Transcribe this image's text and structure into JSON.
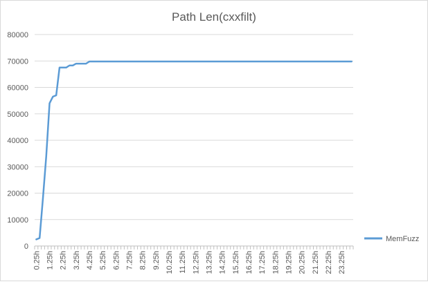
{
  "chart_data": {
    "type": "line",
    "title": "Path Len(cxxfilt)",
    "xlabel": "",
    "ylabel": "",
    "ylim": [
      0,
      80000
    ],
    "yticks": [
      0,
      10000,
      20000,
      30000,
      40000,
      50000,
      60000,
      70000,
      80000
    ],
    "x": [
      0.25,
      0.5,
      0.75,
      1.0,
      1.25,
      1.5,
      1.75,
      2.0,
      2.25,
      2.5,
      2.75,
      3.0,
      3.25,
      3.5,
      3.75,
      4.0,
      4.25,
      4.5,
      4.75,
      5.0,
      5.25,
      5.5,
      5.75,
      6.0,
      6.25,
      6.5,
      6.75,
      7.0,
      7.25,
      7.5,
      7.75,
      8.0,
      8.25,
      8.5,
      8.75,
      9.0,
      9.25,
      9.5,
      9.75,
      10.0,
      10.25,
      10.5,
      10.75,
      11.0,
      11.25,
      11.5,
      11.75,
      12.0,
      12.25,
      12.5,
      12.75,
      13.0,
      13.25,
      13.5,
      13.75,
      14.0,
      14.25,
      14.5,
      14.75,
      15.0,
      15.25,
      15.5,
      15.75,
      16.0,
      16.25,
      16.5,
      16.75,
      17.0,
      17.25,
      17.5,
      17.75,
      18.0,
      18.25,
      18.5,
      18.75,
      19.0,
      19.25,
      19.5,
      19.75,
      20.0,
      20.25,
      20.5,
      20.75,
      21.0,
      21.25,
      21.5,
      21.75,
      22.0,
      22.25,
      22.5,
      22.75,
      23.0,
      23.25,
      23.5,
      23.75,
      24.0
    ],
    "xtick_labels": [
      "0.25h",
      "1.25h",
      "2.25h",
      "3.25h",
      "4.25h",
      "5.25h",
      "6.25h",
      "7.25h",
      "8.25h",
      "9.25h",
      "10.25h",
      "11.25h",
      "12.25h",
      "13.25h",
      "14.25h",
      "15.25h",
      "16.25h",
      "17.25h",
      "18.25h",
      "19.25h",
      "20.25h",
      "21.25h",
      "22.25h",
      "23.25h"
    ],
    "series": [
      {
        "name": "MemFuzz",
        "color": "#5b9bd5",
        "values": [
          2500,
          3000,
          18000,
          34000,
          54000,
          56500,
          57000,
          67500,
          67500,
          67500,
          68300,
          68300,
          69000,
          69000,
          69000,
          69000,
          69800,
          69800,
          69800,
          69800,
          69800,
          69800,
          69800,
          69800,
          69800,
          69800,
          69800,
          69800,
          69800,
          69800,
          69800,
          69800,
          69800,
          69800,
          69800,
          69800,
          69800,
          69800,
          69800,
          69800,
          69800,
          69800,
          69800,
          69800,
          69800,
          69800,
          69800,
          69800,
          69800,
          69800,
          69800,
          69800,
          69800,
          69800,
          69800,
          69800,
          69800,
          69800,
          69800,
          69800,
          69800,
          69800,
          69800,
          69800,
          69800,
          69800,
          69800,
          69800,
          69800,
          69800,
          69800,
          69800,
          69800,
          69800,
          69800,
          69800,
          69800,
          69800,
          69800,
          69800,
          69800,
          69800,
          69800,
          69800,
          69800,
          69800,
          69800,
          69800,
          69800,
          69800,
          69800,
          69800,
          69800,
          69800,
          69800,
          69800
        ]
      }
    ],
    "legend": "right",
    "grid": true
  }
}
